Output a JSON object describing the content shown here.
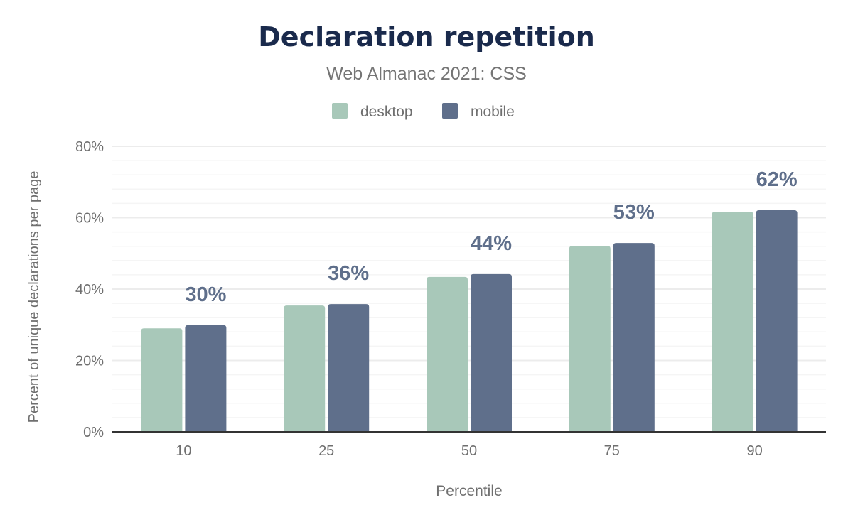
{
  "chart_data": {
    "type": "bar",
    "title": "Declaration repetition",
    "subtitle": "Web Almanac 2021: CSS",
    "xlabel": "Percentile",
    "ylabel": "Percent of unique declarations per page",
    "categories": [
      "10",
      "25",
      "50",
      "75",
      "90"
    ],
    "series": [
      {
        "name": "desktop",
        "color": "#a8c8b9",
        "values": [
          29,
          35.4,
          43.4,
          52.1,
          61.7
        ]
      },
      {
        "name": "mobile",
        "color": "#5f6f8b",
        "values": [
          29.9,
          35.8,
          44.2,
          52.9,
          62.1
        ],
        "labels": [
          "30%",
          "36%",
          "44%",
          "53%",
          "62%"
        ]
      }
    ],
    "ylim": [
      0,
      80
    ],
    "yticks": [
      "0%",
      "20%",
      "40%",
      "60%",
      "80%"
    ],
    "grid": true,
    "legend": "top-center"
  }
}
